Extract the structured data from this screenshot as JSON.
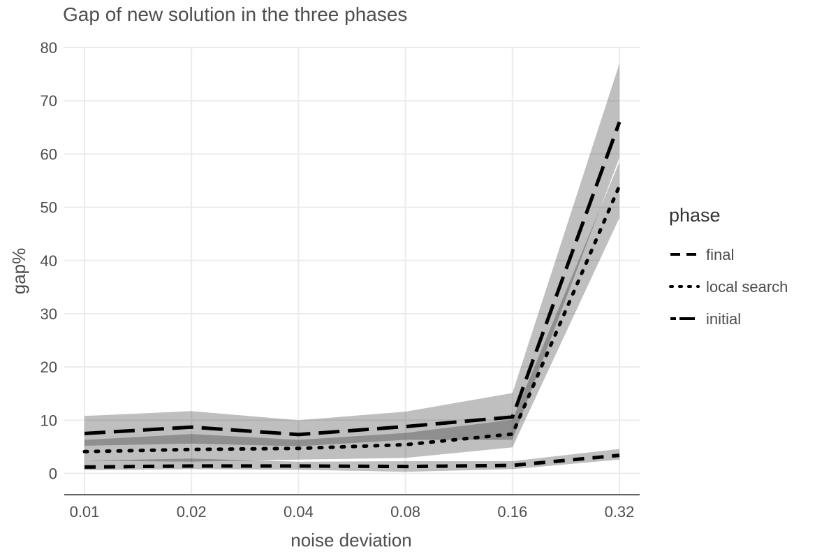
{
  "chart_data": {
    "type": "line",
    "title": "Gap of new solution in the three phases",
    "xlabel": "noise deviation",
    "ylabel": "gap%",
    "x_categories": [
      "0.01",
      "0.02",
      "0.04",
      "0.08",
      "0.16",
      "0.32"
    ],
    "yticks": [
      "0",
      "10",
      "20",
      "30",
      "40",
      "50",
      "60",
      "70",
      "80"
    ],
    "ylim": [
      -4,
      80
    ],
    "grid": true,
    "legend": {
      "title": "phase",
      "placement": "right"
    },
    "series": [
      {
        "name": "final",
        "dash": "dashed",
        "values": [
          1.2,
          1.4,
          1.4,
          1.3,
          1.5,
          3.4
        ],
        "lower": [
          0.6,
          0.8,
          0.7,
          0.3,
          0.8,
          2.6
        ],
        "upper": [
          2.4,
          2.8,
          2.2,
          2.3,
          2.3,
          4.6
        ]
      },
      {
        "name": "local search",
        "dash": "dotted",
        "values": [
          4.1,
          4.5,
          4.7,
          5.4,
          7.4,
          54.0
        ],
        "lower": [
          2.4,
          2.2,
          2.6,
          2.9,
          4.9,
          48.0
        ],
        "upper": [
          6.3,
          7.4,
          6.3,
          7.6,
          10.1,
          58.5
        ]
      },
      {
        "name": "initial",
        "dash": "longdash",
        "values": [
          7.5,
          8.7,
          7.3,
          8.8,
          10.6,
          66.0
        ],
        "lower": [
          5.2,
          5.6,
          5.1,
          6.3,
          6.3,
          59.3
        ],
        "upper": [
          10.8,
          11.7,
          10.0,
          11.6,
          15.1,
          77.0
        ]
      }
    ]
  }
}
